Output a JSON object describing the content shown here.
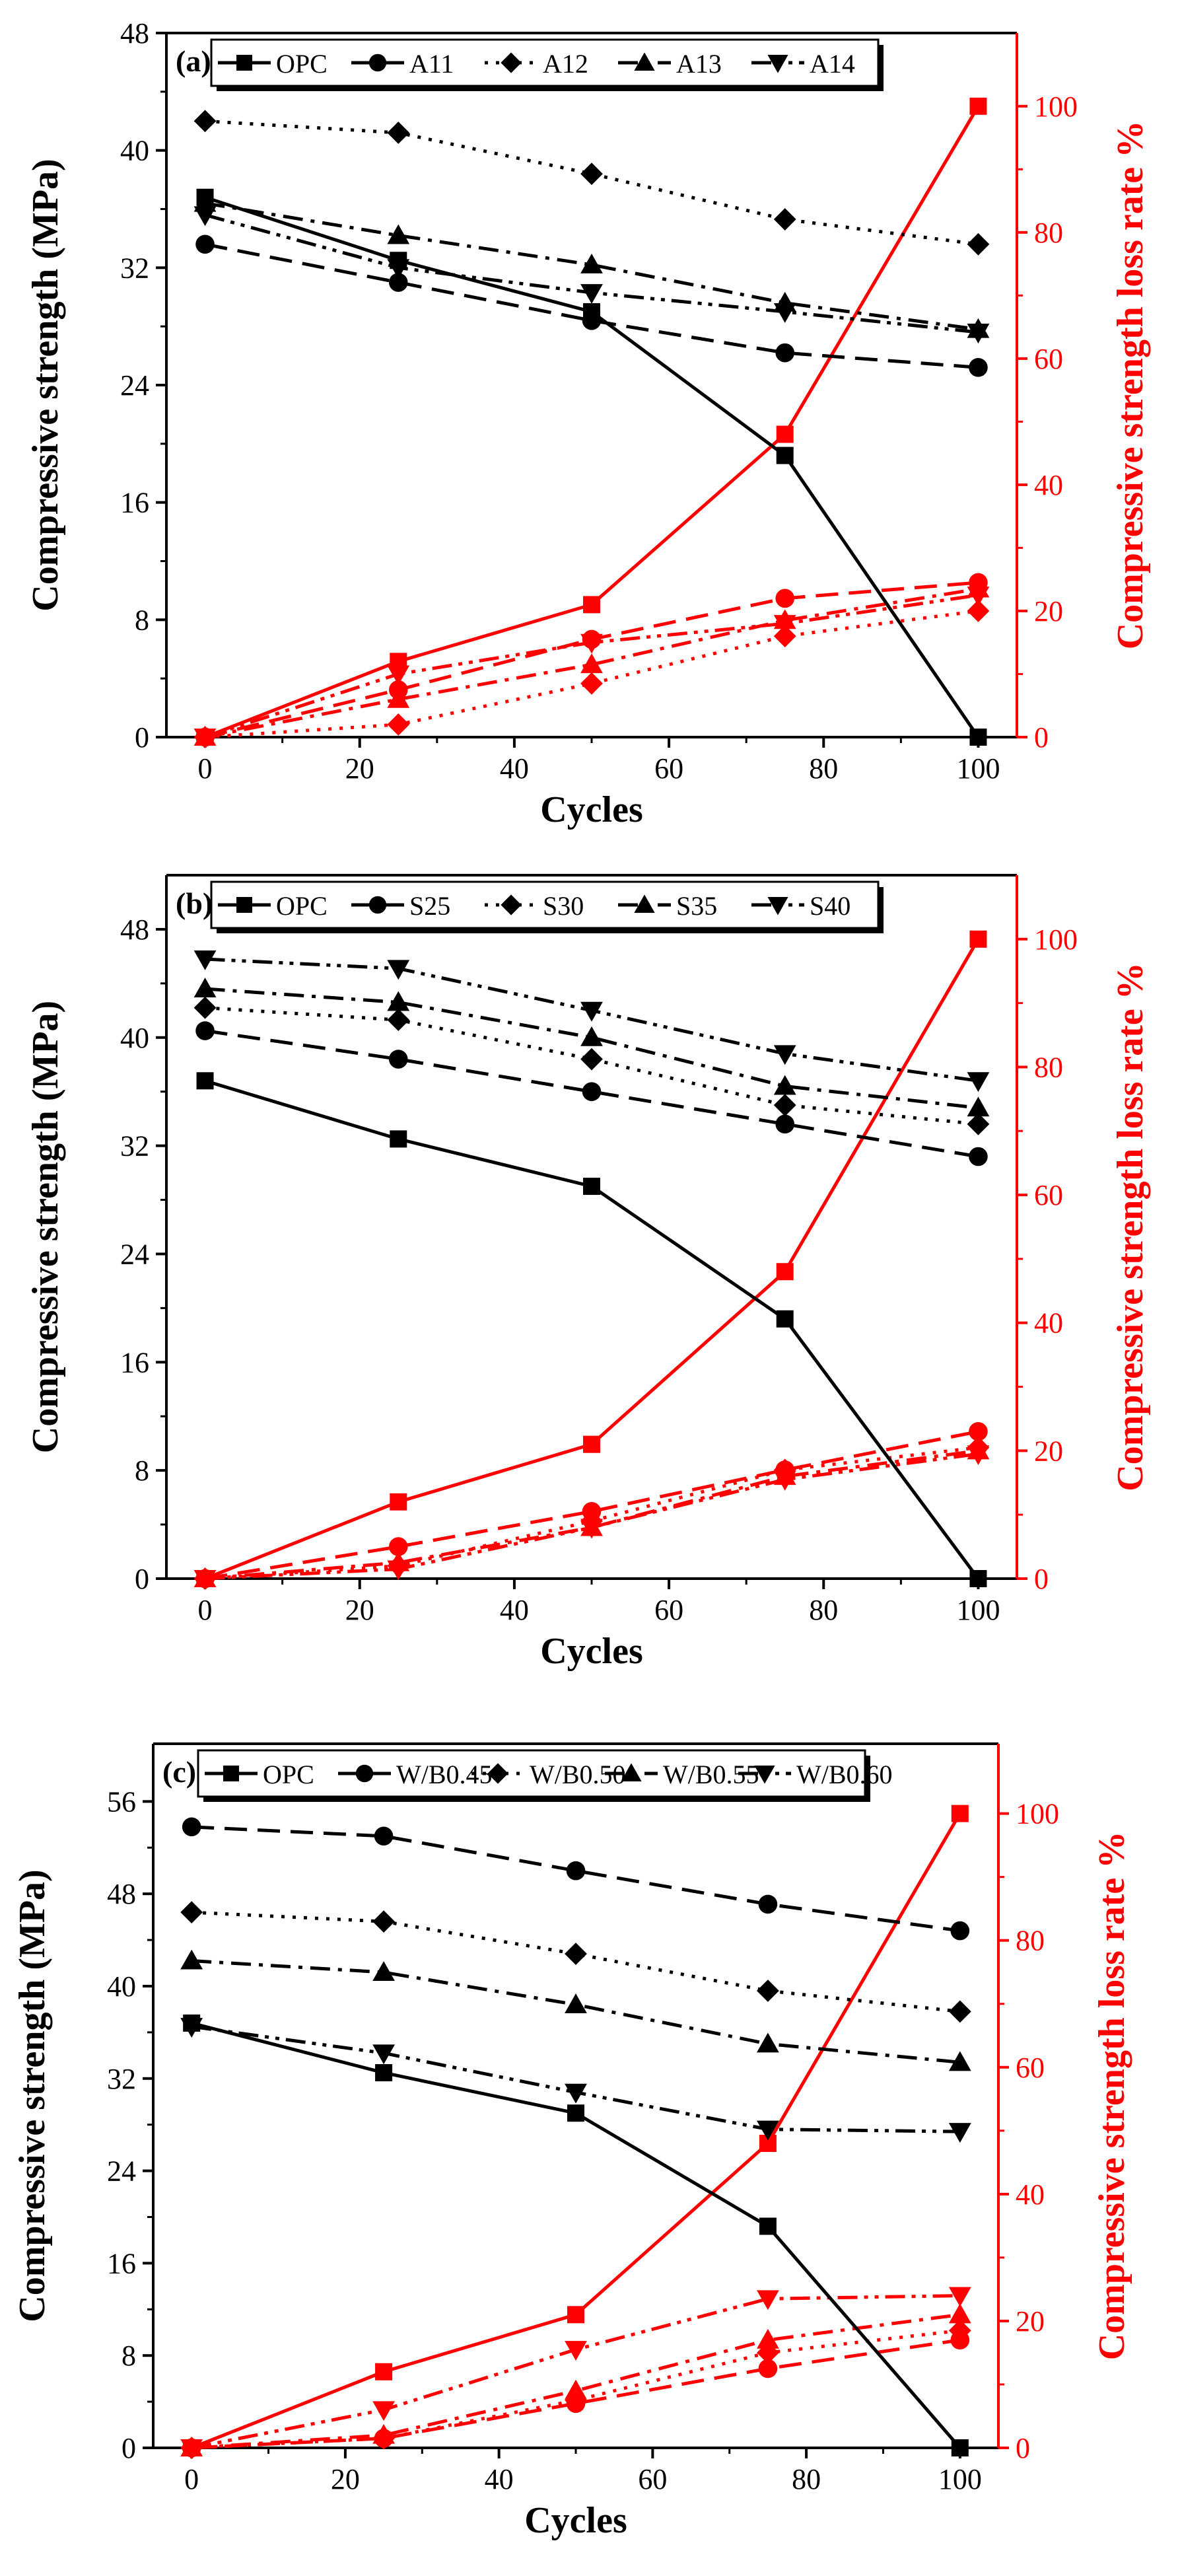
{
  "chart_data": [
    {
      "type": "line",
      "panel_label": "(a)",
      "xlabel": "Cycles",
      "ylabel": "Compressive strength (MPa)",
      "y2label": "Compressive strength loss rate %",
      "xlim": [
        -5,
        105
      ],
      "x_ticks": [
        0,
        20,
        40,
        60,
        80,
        100
      ],
      "ylim": [
        0,
        48
      ],
      "y_ticks": [
        0,
        8,
        16,
        24,
        32,
        40,
        48
      ],
      "y2lim": [
        0,
        111.6
      ],
      "y2_ticks": [
        0,
        20,
        40,
        60,
        80,
        100
      ],
      "legend_position": "top",
      "x": [
        0,
        25,
        50,
        75,
        100
      ],
      "strength_series": [
        {
          "name": "OPC",
          "marker": "square",
          "dash": "solid",
          "values": [
            36.8,
            32.5,
            29.0,
            19.2,
            0.0
          ]
        },
        {
          "name": "A11",
          "marker": "circle",
          "dash": "dash",
          "values": [
            33.6,
            31.0,
            28.4,
            26.2,
            25.2
          ]
        },
        {
          "name": "A12",
          "marker": "diamond",
          "dash": "dot",
          "values": [
            42.0,
            41.2,
            38.4,
            35.3,
            33.6
          ]
        },
        {
          "name": "A13",
          "marker": "triangle-up",
          "dash": "dashdot",
          "values": [
            36.4,
            34.2,
            32.2,
            29.6,
            27.8
          ]
        },
        {
          "name": "A14",
          "marker": "triangle-down",
          "dash": "dashdotdot",
          "values": [
            35.6,
            32.0,
            30.3,
            29.0,
            27.6
          ]
        }
      ],
      "loss_series": [
        {
          "name": "OPC",
          "marker": "square",
          "dash": "solid",
          "values": [
            0,
            12,
            21,
            48,
            100
          ]
        },
        {
          "name": "A11",
          "marker": "circle",
          "dash": "dash",
          "values": [
            0,
            7.5,
            15.5,
            22,
            24.5
          ]
        },
        {
          "name": "A12",
          "marker": "diamond",
          "dash": "dot",
          "values": [
            0,
            2,
            8.5,
            16,
            20
          ]
        },
        {
          "name": "A13",
          "marker": "triangle-up",
          "dash": "dashdot",
          "values": [
            0,
            6,
            11.5,
            18.5,
            23.5
          ]
        },
        {
          "name": "A14",
          "marker": "triangle-down",
          "dash": "dashdotdot",
          "values": [
            0,
            10,
            15,
            18,
            22.5
          ]
        }
      ]
    },
    {
      "type": "line",
      "panel_label": "(b)",
      "xlabel": "Cycles",
      "ylabel": "Compressive strength (MPa)",
      "y2label": "Compressive strength loss rate %",
      "xlim": [
        -5,
        105
      ],
      "x_ticks": [
        0,
        20,
        40,
        60,
        80,
        100
      ],
      "ylim": [
        0,
        52
      ],
      "y_ticks": [
        0,
        8,
        16,
        24,
        32,
        40,
        48
      ],
      "y2lim": [
        0,
        110
      ],
      "y2_ticks": [
        0,
        20,
        40,
        60,
        80,
        100
      ],
      "legend_position": "top",
      "x": [
        0,
        25,
        50,
        75,
        100
      ],
      "strength_series": [
        {
          "name": "OPC",
          "marker": "square",
          "dash": "solid",
          "values": [
            36.8,
            32.5,
            29.0,
            19.2,
            0.0
          ]
        },
        {
          "name": "S25",
          "marker": "circle",
          "dash": "dash",
          "values": [
            40.5,
            38.4,
            36.0,
            33.6,
            31.2
          ]
        },
        {
          "name": "S30",
          "marker": "diamond",
          "dash": "dot",
          "values": [
            42.2,
            41.3,
            38.4,
            35.0,
            33.6
          ]
        },
        {
          "name": "S35",
          "marker": "triangle-up",
          "dash": "dashdot",
          "values": [
            43.6,
            42.6,
            40.0,
            36.4,
            34.8
          ]
        },
        {
          "name": "S40",
          "marker": "triangle-down",
          "dash": "dashdotdot",
          "values": [
            45.8,
            45.1,
            42.0,
            38.8,
            36.8
          ]
        }
      ],
      "loss_series": [
        {
          "name": "OPC",
          "marker": "square",
          "dash": "solid",
          "values": [
            0,
            12,
            21,
            48,
            100
          ]
        },
        {
          "name": "S25",
          "marker": "circle",
          "dash": "dash",
          "values": [
            0,
            5,
            10.5,
            17,
            23
          ]
        },
        {
          "name": "S30",
          "marker": "diamond",
          "dash": "dot",
          "values": [
            0,
            2,
            9,
            17,
            20.5
          ]
        },
        {
          "name": "S35",
          "marker": "triangle-up",
          "dash": "dashdot",
          "values": [
            0,
            2.5,
            8,
            16,
            20
          ]
        },
        {
          "name": "S40",
          "marker": "triangle-down",
          "dash": "dashdotdot",
          "values": [
            0,
            1.5,
            8,
            15.5,
            19.5
          ]
        }
      ]
    },
    {
      "type": "line",
      "panel_label": "(c)",
      "xlabel": "Cycles",
      "ylabel": "Compressive strength (MPa)",
      "y2label": "Compressive strength loss rate %",
      "xlim": [
        -5,
        105
      ],
      "x_ticks": [
        0,
        20,
        40,
        60,
        80,
        100
      ],
      "ylim": [
        0,
        61
      ],
      "y_ticks": [
        0,
        8,
        16,
        24,
        32,
        40,
        48,
        56
      ],
      "y2lim": [
        0,
        111
      ],
      "y2_ticks": [
        0,
        20,
        40,
        60,
        80,
        100
      ],
      "legend_position": "top",
      "x": [
        0,
        25,
        50,
        75,
        100
      ],
      "strength_series": [
        {
          "name": "OPC",
          "marker": "square",
          "dash": "solid",
          "values": [
            36.8,
            32.5,
            29.0,
            19.2,
            0.0
          ]
        },
        {
          "name": "W/B0.45",
          "marker": "circle",
          "dash": "dash",
          "values": [
            53.8,
            53.0,
            50.0,
            47.1,
            44.8
          ]
        },
        {
          "name": "W/B0.50",
          "marker": "diamond",
          "dash": "dot",
          "values": [
            46.4,
            45.6,
            42.8,
            39.6,
            37.8
          ]
        },
        {
          "name": "W/B0.55",
          "marker": "triangle-up",
          "dash": "dashdot",
          "values": [
            42.2,
            41.2,
            38.4,
            35.0,
            33.4
          ]
        },
        {
          "name": "W/B0.60",
          "marker": "triangle-down",
          "dash": "dashdotdot",
          "values": [
            36.5,
            34.2,
            30.8,
            27.6,
            27.4
          ]
        }
      ],
      "loss_series": [
        {
          "name": "OPC",
          "marker": "square",
          "dash": "solid",
          "values": [
            0,
            12,
            21,
            48,
            100
          ]
        },
        {
          "name": "W/B0.45",
          "marker": "circle",
          "dash": "dash",
          "values": [
            0,
            1.5,
            7,
            12.5,
            17
          ]
        },
        {
          "name": "W/B0.50",
          "marker": "diamond",
          "dash": "dot",
          "values": [
            0,
            1.5,
            7.5,
            15,
            18.5
          ]
        },
        {
          "name": "W/B0.55",
          "marker": "triangle-up",
          "dash": "dashdot",
          "values": [
            0,
            2,
            9,
            17,
            21
          ]
        },
        {
          "name": "W/B0.60",
          "marker": "triangle-down",
          "dash": "dashdotdot",
          "values": [
            0,
            6,
            15.5,
            23.5,
            24
          ]
        }
      ]
    }
  ],
  "colors": {
    "strength": "#000000",
    "loss": "#ff0000",
    "background": "#ffffff"
  }
}
